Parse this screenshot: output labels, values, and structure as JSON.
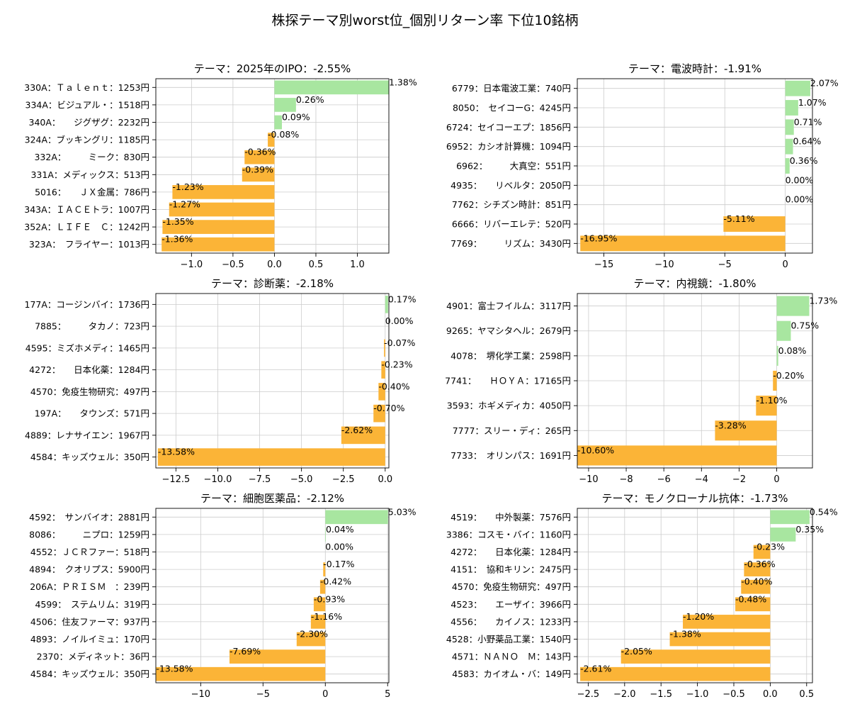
{
  "title": "株探テーマ別worst位_個別リターン率 下位10銘柄",
  "colors": {
    "positive": "#a8e6a0",
    "negative": "#fbb437",
    "grid": "#cccccc",
    "axis": "#000000"
  },
  "chart_data": [
    {
      "type": "bar",
      "orientation": "horizontal",
      "title": "テーマ：2025年のIPO：-2.55%",
      "categories": [
        "330A：Ｔａｌｅｎｔ：1253円",
        "334A：ビジュアル・：1518円",
        "340A：　　ジグザグ：2232円",
        "324A：ブッキングリ：1185円",
        "332A：　　　ミーク：830円",
        "331A：メディックス：513円",
        "5016：　　ＪＸ金属：786円",
        "343A：ＩＡＣＥトラ：1007円",
        "352A：ＬＩＦＥ　Ｃ：1242円",
        "323A：　フライヤー：1013円"
      ],
      "values": [
        1.38,
        0.26,
        0.09,
        -0.08,
        -0.36,
        -0.39,
        -1.23,
        -1.27,
        -1.35,
        -1.36
      ],
      "value_labels": [
        "1.38%",
        "0.26%",
        "0.09%",
        "-0.08%",
        "-0.36%",
        "-0.39%",
        "-1.23%",
        "-1.27%",
        "-1.35%",
        "-1.36%"
      ],
      "xlim": [
        -1.43,
        1.38
      ],
      "xticks": [
        -1.0,
        -0.5,
        0.0,
        0.5,
        1.0
      ],
      "xtick_labels": [
        "−1.0",
        "−0.5",
        "0.0",
        "0.5",
        "1.0"
      ],
      "grid": true
    },
    {
      "type": "bar",
      "orientation": "horizontal",
      "title": "テーマ：電波時計：-1.91%",
      "categories": [
        "6779：日本電波工業：740円",
        "8050：　セイコーG：4245円",
        "6724：セイコーエプ：1856円",
        "6952：カシオ計算機：1094円",
        "6962：　　　大真空：551円",
        "4935：　　リベルタ：2050円",
        "7762：シチズン時計：851円",
        "6666：リバーエレテ：520円",
        "7769：　　　リズム：3430円"
      ],
      "values": [
        2.07,
        1.07,
        0.71,
        0.64,
        0.36,
        0.0,
        0.0,
        -5.11,
        -16.95
      ],
      "value_labels": [
        "2.07%",
        "1.07%",
        "0.71%",
        "0.64%",
        "0.36%",
        "0.00%",
        "0.00%",
        "-5.11%",
        "-16.95%"
      ],
      "xlim": [
        -17.2,
        2.25
      ],
      "xticks": [
        -15,
        -10,
        -5,
        0
      ],
      "xtick_labels": [
        "−15",
        "−10",
        "−5",
        "0"
      ],
      "grid": true
    },
    {
      "type": "bar",
      "orientation": "horizontal",
      "title": "テーマ：診断薬：-2.18%",
      "categories": [
        "177A：コージンバイ：1736円",
        "7885：　　　タカノ：723円",
        "4595：ミズホメディ：1465円",
        "4272：　　日本化薬：1284円",
        "4570：免疫生物研究：497円",
        "197A：　　タウンズ：571円",
        "4889：レナサイエン：1967円",
        "4584：キッズウェル：350円"
      ],
      "values": [
        0.17,
        0.0,
        -0.07,
        -0.23,
        -0.4,
        -0.7,
        -2.62,
        -13.58
      ],
      "value_labels": [
        "0.17%",
        "0.00%",
        "-0.07%",
        "-0.23%",
        "-0.40%",
        "-0.70%",
        "-2.62%",
        "-13.58%"
      ],
      "xlim": [
        -13.7,
        0.22
      ],
      "xticks": [
        -12.5,
        -10.0,
        -7.5,
        -5.0,
        -2.5,
        0.0
      ],
      "xtick_labels": [
        "−12.5",
        "−10.0",
        "−7.5",
        "−5.0",
        "−2.5",
        "0.0"
      ],
      "grid": true
    },
    {
      "type": "bar",
      "orientation": "horizontal",
      "title": "テーマ：内視鏡：-1.80%",
      "categories": [
        "4901：富士フイルム：3117円",
        "9265：ヤマシタヘル：2679円",
        "4078：　堺化学工業：2598円",
        "7741：　　ＨＯＹＡ：17165円",
        "3593：ホギメディカ：4050円",
        "7777：スリー・ディ：265円",
        "7733：　オリンパス：1691円"
      ],
      "values": [
        1.73,
        0.75,
        0.08,
        -0.2,
        -1.1,
        -3.28,
        -10.6
      ],
      "value_labels": [
        "1.73%",
        "0.75%",
        "0.08%",
        "-0.20%",
        "-1.10%",
        "-3.28%",
        "-10.60%"
      ],
      "xlim": [
        -10.6,
        1.9
      ],
      "xticks": [
        -10,
        -8,
        -6,
        -4,
        -2,
        0
      ],
      "xtick_labels": [
        "−10",
        "−8",
        "−6",
        "−4",
        "−2",
        "0"
      ],
      "grid": true
    },
    {
      "type": "bar",
      "orientation": "horizontal",
      "title": "テーマ：細胞医薬品：-2.12%",
      "categories": [
        "4592：　サンバイオ：2881円",
        "8086：　　　ニプロ：1259円",
        "4552：ＪＣＲファー：518円",
        "4894：　クオリプス：5900円",
        "206A：ＰＲＩＳＭ　：239円",
        "4599：　ステムリム：319円",
        "4506：住友ファーマ：937円",
        "4893：ノイルイミュ：170円",
        "2370：メディネット：36円",
        "4584：キッズウェル：350円"
      ],
      "values": [
        5.03,
        0.04,
        0.0,
        -0.17,
        -0.42,
        -0.93,
        -1.16,
        -2.3,
        -7.69,
        -13.58
      ],
      "value_labels": [
        "5.03%",
        "0.04%",
        "0.00%",
        "-0.17%",
        "-0.42%",
        "-0.93%",
        "-1.16%",
        "-2.30%",
        "-7.69%",
        "-13.58%"
      ],
      "xlim": [
        -13.6,
        5.1
      ],
      "xticks": [
        -10,
        -5,
        0,
        5
      ],
      "xtick_labels": [
        "−10",
        "−5",
        "0",
        "5"
      ],
      "grid": true
    },
    {
      "type": "bar",
      "orientation": "horizontal",
      "title": "テーマ：モノクローナル抗体：-1.73%",
      "categories": [
        "4519：　　中外製薬：7576円",
        "3386：コスモ・バイ：1160円",
        "4272：　　日本化薬：1284円",
        "4151：　協和キリン：2475円",
        "4570：免疫生物研究：497円",
        "4523：　　エーザイ：3966円",
        "4556：　　カイノス：1233円",
        "4528：小野薬品工業：1540円",
        "4571：ＮＡＮＯ　Ｍ：143円",
        "4583：カイオム・バ：149円"
      ],
      "values": [
        0.54,
        0.35,
        -0.23,
        -0.36,
        -0.4,
        -0.48,
        -1.2,
        -1.38,
        -2.05,
        -2.61
      ],
      "value_labels": [
        "0.54%",
        "0.35%",
        "-0.23%",
        "-0.36%",
        "-0.40%",
        "-0.48%",
        "-1.20%",
        "-1.38%",
        "-2.05%",
        "-2.61%"
      ],
      "xlim": [
        -2.65,
        0.58
      ],
      "xticks": [
        -2.5,
        -2.0,
        -1.5,
        -1.0,
        -0.5,
        0.0,
        0.5
      ],
      "xtick_labels": [
        "−2.5",
        "−2.0",
        "−1.5",
        "−1.0",
        "−0.5",
        "0.0",
        "0.5"
      ],
      "grid": true
    }
  ]
}
